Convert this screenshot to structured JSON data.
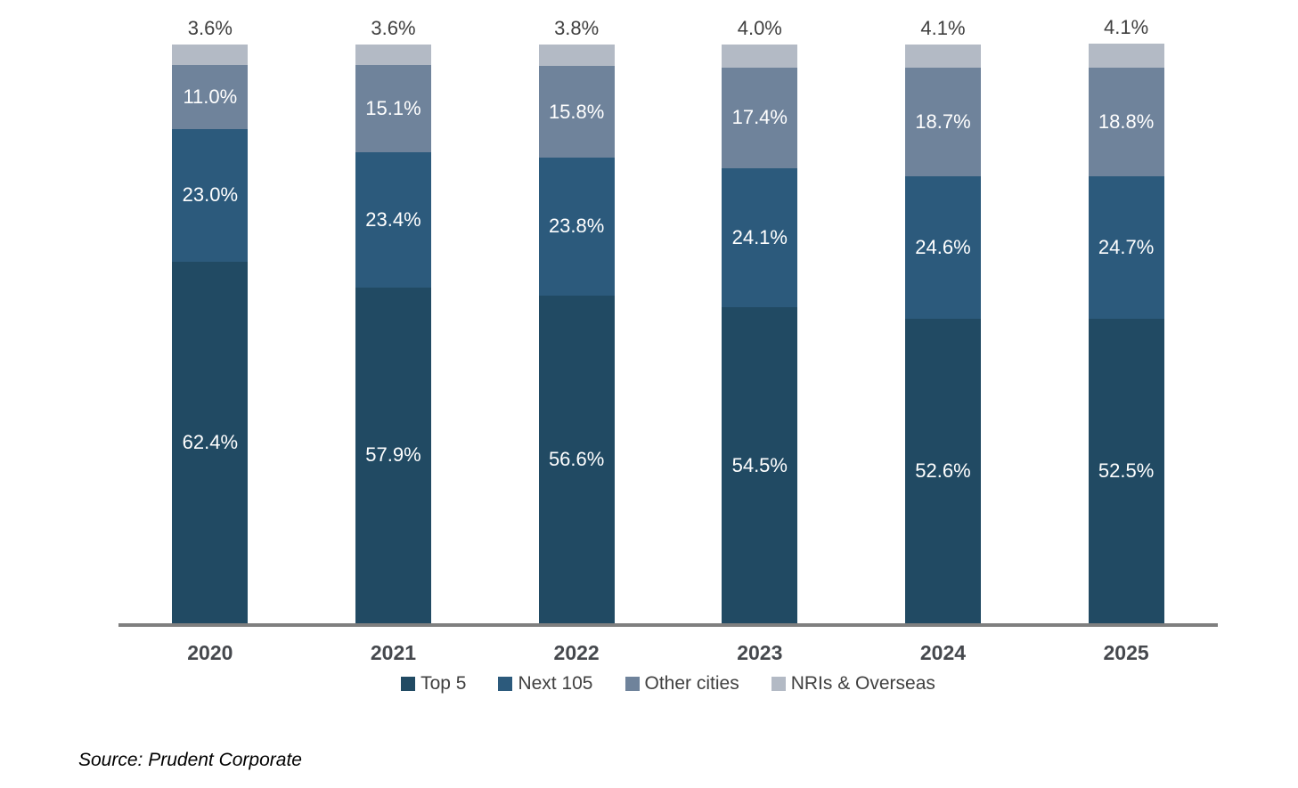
{
  "chart_data": {
    "type": "bar",
    "stacked": true,
    "percent_stacked": true,
    "categories": [
      "2020",
      "2021",
      "2022",
      "2023",
      "2024",
      "2025"
    ],
    "series": [
      {
        "name": "Top 5",
        "color": "#214a63",
        "values": [
          62.4,
          57.9,
          56.6,
          54.5,
          52.6,
          52.5
        ]
      },
      {
        "name": "Next 105",
        "color": "#2c5a7c",
        "values": [
          23.0,
          23.4,
          23.8,
          24.1,
          24.6,
          24.7
        ]
      },
      {
        "name": "Other cities",
        "color": "#6f839b",
        "values": [
          11.0,
          15.1,
          15.8,
          17.4,
          18.7,
          18.8
        ]
      },
      {
        "name": "NRIs & Overseas",
        "color": "#b3bac5",
        "values": [
          3.6,
          3.6,
          3.8,
          4.0,
          4.1,
          4.1
        ]
      }
    ],
    "value_suffix": "%",
    "value_decimals": 1,
    "ylim": [
      0,
      100
    ],
    "grid": false,
    "legend_position": "bottom",
    "axis_line_color": "#7f7f7f",
    "in_bar_label_color": "#ffffff",
    "outside_label_color": "#404040",
    "top_series_label_outside": "NRIs & Overseas"
  },
  "source_note": "Source: Prudent Corporate"
}
